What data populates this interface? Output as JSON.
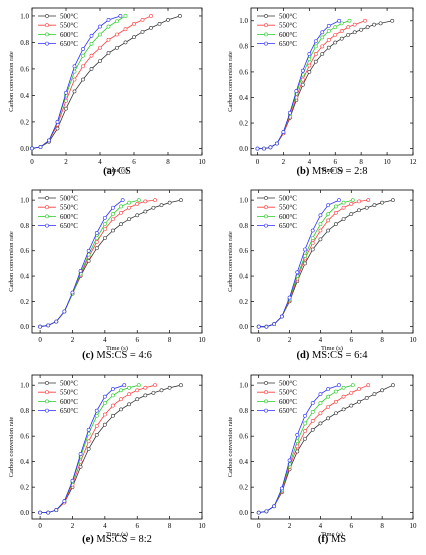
{
  "chart_data": [
    {
      "type": "line",
      "caption": {
        "tag": "(a)",
        "text": "CS"
      },
      "xlabel": "Time (s)",
      "ylabel": "Carbon conversion rate",
      "xlim": [
        0,
        10
      ],
      "ylim": [
        -0.05,
        1.06
      ],
      "xticks": [
        "0",
        "2",
        "4",
        "6",
        "8",
        "10"
      ],
      "yticks": [
        "0.0",
        "0.2",
        "0.4",
        "0.6",
        "0.8",
        "1.0"
      ],
      "grid": false,
      "legend_position": "top-left",
      "series": [
        {
          "name": "500°C",
          "color": "#333333",
          "x": [
            0,
            0.5,
            1,
            1.5,
            2,
            2.5,
            3,
            3.5,
            4,
            4.5,
            5,
            5.5,
            6,
            6.5,
            7,
            7.5,
            8,
            8.7
          ],
          "y": [
            0,
            0.01,
            0.05,
            0.15,
            0.3,
            0.43,
            0.52,
            0.6,
            0.66,
            0.72,
            0.76,
            0.8,
            0.84,
            0.88,
            0.91,
            0.94,
            0.97,
            1.0
          ]
        },
        {
          "name": "550°C",
          "color": "#ff3b3b",
          "x": [
            0,
            0.5,
            1,
            1.5,
            2,
            2.5,
            3,
            3.5,
            4,
            4.5,
            5,
            5.5,
            6,
            6.5,
            7
          ],
          "y": [
            0,
            0.01,
            0.06,
            0.18,
            0.36,
            0.52,
            0.62,
            0.7,
            0.76,
            0.82,
            0.86,
            0.9,
            0.94,
            0.97,
            1.0
          ]
        },
        {
          "name": "600°C",
          "color": "#22cc22",
          "x": [
            0,
            0.5,
            1,
            1.5,
            2,
            2.5,
            3,
            3.5,
            4,
            4.5,
            5,
            5.5
          ],
          "y": [
            0,
            0.01,
            0.06,
            0.2,
            0.4,
            0.58,
            0.7,
            0.79,
            0.86,
            0.92,
            0.96,
            1.0
          ]
        },
        {
          "name": "650°C",
          "color": "#2b2bff",
          "x": [
            0,
            0.5,
            1,
            1.5,
            2,
            2.5,
            3,
            3.5,
            4,
            4.5,
            5.2
          ],
          "y": [
            0,
            0.01,
            0.06,
            0.2,
            0.42,
            0.62,
            0.75,
            0.85,
            0.92,
            0.97,
            1.0
          ]
        }
      ]
    },
    {
      "type": "line",
      "caption": {
        "tag": "(b)",
        "text": "MS:CS = 2:8"
      },
      "xlabel": "Time (s)",
      "ylabel": "Carbon conversion rate",
      "xlim": [
        -0.5,
        12
      ],
      "ylim": [
        -0.05,
        1.1
      ],
      "xticks": [
        "0",
        "2",
        "4",
        "6",
        "8",
        "10",
        "12"
      ],
      "yticks": [
        "0.0",
        "0.2",
        "0.4",
        "0.6",
        "0.8",
        "1.0"
      ],
      "grid": false,
      "legend_position": "top-left",
      "series": [
        {
          "name": "500°C",
          "color": "#333333",
          "x": [
            0,
            0.5,
            1,
            1.5,
            2,
            2.5,
            3,
            3.5,
            4,
            4.5,
            5,
            5.5,
            6,
            6.5,
            7,
            7.5,
            8,
            8.5,
            9,
            9.5,
            10.4
          ],
          "y": [
            0,
            0,
            0.01,
            0.04,
            0.12,
            0.24,
            0.38,
            0.5,
            0.6,
            0.68,
            0.74,
            0.79,
            0.83,
            0.86,
            0.89,
            0.91,
            0.93,
            0.95,
            0.97,
            0.98,
            1.0
          ]
        },
        {
          "name": "550°C",
          "color": "#ff3b3b",
          "x": [
            0,
            0.5,
            1,
            1.5,
            2,
            2.5,
            3,
            3.5,
            4,
            4.5,
            5,
            5.5,
            6,
            6.5,
            7,
            7.5,
            8.3
          ],
          "y": [
            0,
            0,
            0.01,
            0.04,
            0.12,
            0.25,
            0.4,
            0.54,
            0.65,
            0.74,
            0.8,
            0.85,
            0.89,
            0.92,
            0.95,
            0.97,
            1.0
          ]
        },
        {
          "name": "600°C",
          "color": "#22cc22",
          "x": [
            0,
            0.5,
            1,
            1.5,
            2,
            2.5,
            3,
            3.5,
            4,
            4.5,
            5,
            5.5,
            6,
            6.5,
            7.1
          ],
          "y": [
            0,
            0,
            0.01,
            0.04,
            0.13,
            0.27,
            0.43,
            0.58,
            0.7,
            0.8,
            0.87,
            0.92,
            0.95,
            0.98,
            1.0
          ]
        },
        {
          "name": "650°C",
          "color": "#2b2bff",
          "x": [
            0,
            0.5,
            1,
            1.5,
            2,
            2.5,
            3,
            3.5,
            4,
            4.5,
            5,
            5.5,
            6.3
          ],
          "y": [
            0,
            0,
            0.01,
            0.04,
            0.13,
            0.28,
            0.45,
            0.61,
            0.74,
            0.84,
            0.91,
            0.96,
            1.0
          ]
        }
      ]
    },
    {
      "type": "line",
      "caption": {
        "tag": "(c)",
        "text": "MS:CS = 4:6"
      },
      "xlabel": "Time (s)",
      "ylabel": "Carbon conversion rate",
      "xlim": [
        -0.5,
        10
      ],
      "ylim": [
        -0.05,
        1.08
      ],
      "xticks": [
        "0",
        "2",
        "4",
        "6",
        "8",
        "10"
      ],
      "yticks": [
        "0.0",
        "0.2",
        "0.4",
        "0.6",
        "0.8",
        "1.0"
      ],
      "grid": false,
      "legend_position": "top-left",
      "series": [
        {
          "name": "500°C",
          "color": "#333333",
          "x": [
            0,
            0.5,
            1,
            1.5,
            2,
            2.5,
            3,
            3.5,
            4,
            4.5,
            5,
            5.5,
            6,
            6.5,
            7,
            7.5,
            8,
            8.7
          ],
          "y": [
            0,
            0.01,
            0.04,
            0.12,
            0.26,
            0.4,
            0.52,
            0.62,
            0.7,
            0.76,
            0.81,
            0.85,
            0.88,
            0.91,
            0.94,
            0.96,
            0.98,
            1.0
          ]
        },
        {
          "name": "550°C",
          "color": "#ff3b3b",
          "x": [
            0,
            0.5,
            1,
            1.5,
            2,
            2.5,
            3,
            3.5,
            4,
            4.5,
            5,
            5.5,
            6,
            6.5,
            7.1
          ],
          "y": [
            0,
            0.01,
            0.04,
            0.12,
            0.26,
            0.41,
            0.55,
            0.67,
            0.77,
            0.85,
            0.9,
            0.94,
            0.97,
            0.99,
            1.0
          ]
        },
        {
          "name": "600°C",
          "color": "#22cc22",
          "x": [
            0,
            0.5,
            1,
            1.5,
            2,
            2.5,
            3,
            3.5,
            4,
            4.5,
            5,
            5.5,
            6.1
          ],
          "y": [
            0,
            0.01,
            0.04,
            0.12,
            0.26,
            0.42,
            0.57,
            0.7,
            0.81,
            0.89,
            0.95,
            0.98,
            1.0
          ]
        },
        {
          "name": "650°C",
          "color": "#2b2bff",
          "x": [
            0,
            0.5,
            1,
            1.5,
            2,
            2.5,
            3,
            3.5,
            4,
            4.5,
            5.1
          ],
          "y": [
            0,
            0.01,
            0.04,
            0.12,
            0.27,
            0.44,
            0.6,
            0.74,
            0.86,
            0.94,
            1.0
          ]
        }
      ]
    },
    {
      "type": "line",
      "caption": {
        "tag": "(d)",
        "text": "MS:CS = 6:4"
      },
      "xlabel": "Time (s)",
      "ylabel": "Carbon conversion rate",
      "xlim": [
        -0.5,
        10
      ],
      "ylim": [
        -0.05,
        1.08
      ],
      "xticks": [
        "0",
        "2",
        "4",
        "6",
        "8",
        "10"
      ],
      "yticks": [
        "0.0",
        "0.2",
        "0.4",
        "0.6",
        "0.8",
        "1.0"
      ],
      "grid": false,
      "legend_position": "top-left",
      "series": [
        {
          "name": "500°C",
          "color": "#333333",
          "x": [
            0,
            0.5,
            1,
            1.5,
            2,
            2.5,
            3,
            3.5,
            4,
            4.5,
            5,
            5.5,
            6,
            6.5,
            7,
            7.5,
            8,
            8.7
          ],
          "y": [
            0,
            0,
            0.02,
            0.08,
            0.2,
            0.36,
            0.5,
            0.61,
            0.69,
            0.76,
            0.81,
            0.85,
            0.89,
            0.92,
            0.94,
            0.96,
            0.98,
            1.0
          ]
        },
        {
          "name": "550°C",
          "color": "#ff3b3b",
          "x": [
            0,
            0.5,
            1,
            1.5,
            2,
            2.5,
            3,
            3.5,
            4,
            4.5,
            5,
            5.5,
            6,
            6.5,
            7.1
          ],
          "y": [
            0,
            0,
            0.02,
            0.08,
            0.21,
            0.38,
            0.54,
            0.66,
            0.76,
            0.84,
            0.9,
            0.94,
            0.97,
            0.99,
            1.0
          ]
        },
        {
          "name": "600°C",
          "color": "#22cc22",
          "x": [
            0,
            0.5,
            1,
            1.5,
            2,
            2.5,
            3,
            3.5,
            4,
            4.5,
            5,
            5.5,
            6.1
          ],
          "y": [
            0,
            0,
            0.02,
            0.08,
            0.22,
            0.4,
            0.56,
            0.7,
            0.81,
            0.89,
            0.95,
            0.98,
            1.0
          ]
        },
        {
          "name": "650°C",
          "color": "#2b2bff",
          "x": [
            0,
            0.5,
            1,
            1.5,
            2,
            2.5,
            3,
            3.5,
            4,
            4.5,
            5.2
          ],
          "y": [
            0,
            0,
            0.02,
            0.08,
            0.23,
            0.43,
            0.61,
            0.76,
            0.88,
            0.96,
            1.0
          ]
        }
      ]
    },
    {
      "type": "line",
      "caption": {
        "tag": "(e)",
        "text": "MS:CS = 8:2"
      },
      "xlabel": "Time (s)",
      "ylabel": "Carbon conversion rate",
      "xlim": [
        -0.5,
        10
      ],
      "ylim": [
        -0.05,
        1.08
      ],
      "xticks": [
        "0",
        "2",
        "4",
        "6",
        "8",
        "10"
      ],
      "yticks": [
        "0.0",
        "0.2",
        "0.4",
        "0.6",
        "0.8",
        "1.0"
      ],
      "grid": false,
      "legend_position": "top-left",
      "series": [
        {
          "name": "500°C",
          "color": "#333333",
          "x": [
            0,
            0.5,
            1,
            1.5,
            2,
            2.5,
            3,
            3.5,
            4,
            4.5,
            5,
            5.5,
            6,
            6.5,
            7,
            7.5,
            8,
            8.7
          ],
          "y": [
            0,
            0,
            0.02,
            0.08,
            0.2,
            0.36,
            0.5,
            0.61,
            0.69,
            0.76,
            0.81,
            0.85,
            0.89,
            0.92,
            0.94,
            0.96,
            0.98,
            1.0
          ]
        },
        {
          "name": "550°C",
          "color": "#ff3b3b",
          "x": [
            0,
            0.5,
            1,
            1.5,
            2,
            2.5,
            3,
            3.5,
            4,
            4.5,
            5,
            5.5,
            6,
            6.5,
            7.1
          ],
          "y": [
            0,
            0,
            0.02,
            0.08,
            0.22,
            0.4,
            0.56,
            0.68,
            0.77,
            0.84,
            0.89,
            0.93,
            0.96,
            0.98,
            1.0
          ]
        },
        {
          "name": "600°C",
          "color": "#22cc22",
          "x": [
            0,
            0.5,
            1,
            1.5,
            2,
            2.5,
            3,
            3.5,
            4,
            4.5,
            5,
            5.5,
            6.1
          ],
          "y": [
            0,
            0,
            0.02,
            0.09,
            0.24,
            0.44,
            0.62,
            0.76,
            0.86,
            0.92,
            0.96,
            0.98,
            1.0
          ]
        },
        {
          "name": "650°C",
          "color": "#2b2bff",
          "x": [
            0,
            0.5,
            1,
            1.5,
            2,
            2.5,
            3,
            3.5,
            4,
            4.5,
            5.2
          ],
          "y": [
            0,
            0,
            0.02,
            0.09,
            0.25,
            0.46,
            0.65,
            0.8,
            0.91,
            0.97,
            1.0
          ]
        }
      ]
    },
    {
      "type": "line",
      "caption": {
        "tag": "(f)",
        "text": "MS"
      },
      "xlabel": "Time (s)",
      "ylabel": "Carbon conversion rate",
      "xlim": [
        -0.5,
        10
      ],
      "ylim": [
        -0.05,
        1.08
      ],
      "xticks": [
        "0",
        "2",
        "4",
        "6",
        "8",
        "10"
      ],
      "yticks": [
        "0.0",
        "0.2",
        "0.4",
        "0.6",
        "0.8",
        "1.0"
      ],
      "grid": false,
      "legend_position": "top-left",
      "series": [
        {
          "name": "500°C",
          "color": "#333333",
          "x": [
            0,
            0.5,
            1,
            1.5,
            2,
            2.5,
            3,
            3.5,
            4,
            4.5,
            5,
            5.5,
            6,
            6.5,
            7,
            7.5,
            8,
            8.7
          ],
          "y": [
            0,
            0.01,
            0.05,
            0.16,
            0.34,
            0.48,
            0.58,
            0.65,
            0.7,
            0.74,
            0.78,
            0.81,
            0.84,
            0.87,
            0.9,
            0.93,
            0.96,
            1.0
          ]
        },
        {
          "name": "550°C",
          "color": "#ff3b3b",
          "x": [
            0,
            0.5,
            1,
            1.5,
            2,
            2.5,
            3,
            3.5,
            4,
            4.5,
            5,
            5.5,
            6,
            6.5,
            7.1
          ],
          "y": [
            0,
            0.01,
            0.05,
            0.17,
            0.36,
            0.52,
            0.64,
            0.72,
            0.78,
            0.83,
            0.87,
            0.91,
            0.94,
            0.97,
            1.0
          ]
        },
        {
          "name": "600°C",
          "color": "#22cc22",
          "x": [
            0,
            0.5,
            1,
            1.5,
            2,
            2.5,
            3,
            3.5,
            4,
            4.5,
            5,
            5.5,
            6.1
          ],
          "y": [
            0,
            0.01,
            0.05,
            0.18,
            0.38,
            0.56,
            0.7,
            0.79,
            0.86,
            0.91,
            0.95,
            0.98,
            1.0
          ]
        },
        {
          "name": "650°C",
          "color": "#2b2bff",
          "x": [
            0,
            0.5,
            1,
            1.5,
            2,
            2.5,
            3,
            3.5,
            4,
            4.5,
            5.2
          ],
          "y": [
            0,
            0.01,
            0.05,
            0.19,
            0.41,
            0.61,
            0.76,
            0.86,
            0.93,
            0.97,
            1.0
          ]
        }
      ]
    }
  ]
}
